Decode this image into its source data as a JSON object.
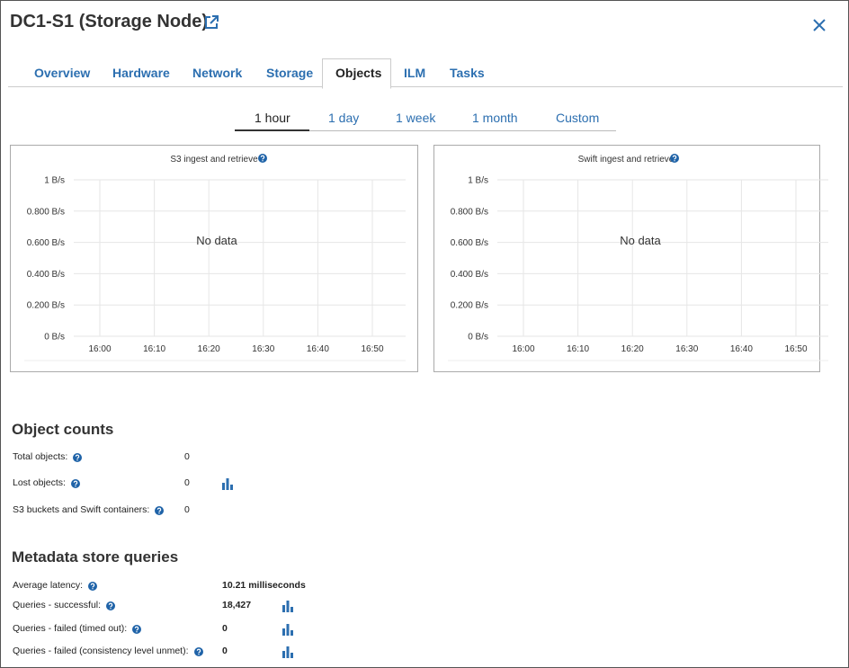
{
  "header": {
    "title": "DC1-S1 (Storage Node)"
  },
  "tabs": [
    "Overview",
    "Hardware",
    "Network",
    "Storage",
    "Objects",
    "ILM",
    "Tasks"
  ],
  "active_tab": "Objects",
  "time_ranges": [
    "1 hour",
    "1 day",
    "1 week",
    "1 month",
    "Custom"
  ],
  "active_time_range": "1 hour",
  "chart_data": [
    {
      "type": "line",
      "title": "S3 ingest and retrieve",
      "annotation": "No data",
      "categories": [
        "16:00",
        "16:10",
        "16:20",
        "16:30",
        "16:40",
        "16:50"
      ],
      "ylim": [
        0,
        1
      ],
      "yticks": [
        {
          "value": 0,
          "label": "0 B/s"
        },
        {
          "value": 0.2,
          "label": "0.200 B/s"
        },
        {
          "value": 0.4,
          "label": "0.400 B/s"
        },
        {
          "value": 0.6,
          "label": "0.600 B/s"
        },
        {
          "value": 0.8,
          "label": "0.800 B/s"
        },
        {
          "value": 1,
          "label": "1 B/s"
        }
      ],
      "grid": true
    },
    {
      "type": "line",
      "title": "Swift ingest and retrieve",
      "annotation": "No data",
      "categories": [
        "16:00",
        "16:10",
        "16:20",
        "16:30",
        "16:40",
        "16:50"
      ],
      "ylim": [
        0,
        1
      ],
      "yticks": [
        {
          "value": 0,
          "label": "0 B/s"
        },
        {
          "value": 0.2,
          "label": "0.200 B/s"
        },
        {
          "value": 0.4,
          "label": "0.400 B/s"
        },
        {
          "value": 0.6,
          "label": "0.600 B/s"
        },
        {
          "value": 0.8,
          "label": "0.800 B/s"
        },
        {
          "value": 1,
          "label": "1 B/s"
        }
      ],
      "grid": true
    }
  ],
  "object_counts": {
    "title": "Object counts",
    "rows": [
      {
        "label": "Total objects:",
        "value": "0",
        "chart_icon": false
      },
      {
        "label": "Lost objects:",
        "value": "0",
        "chart_icon": true
      },
      {
        "label": "S3 buckets and Swift containers:",
        "value": "0",
        "chart_icon": false
      }
    ]
  },
  "metadata_queries": {
    "title": "Metadata store queries",
    "rows": [
      {
        "label": "Average latency:",
        "value": "10.21 milliseconds",
        "chart_icon": false
      },
      {
        "label": "Queries - successful:",
        "value": "18,427",
        "chart_icon": true
      },
      {
        "label": "Queries - failed (timed out):",
        "value": "0",
        "chart_icon": true
      },
      {
        "label": "Queries - failed (consistency level unmet):",
        "value": "0",
        "chart_icon": true
      }
    ]
  }
}
